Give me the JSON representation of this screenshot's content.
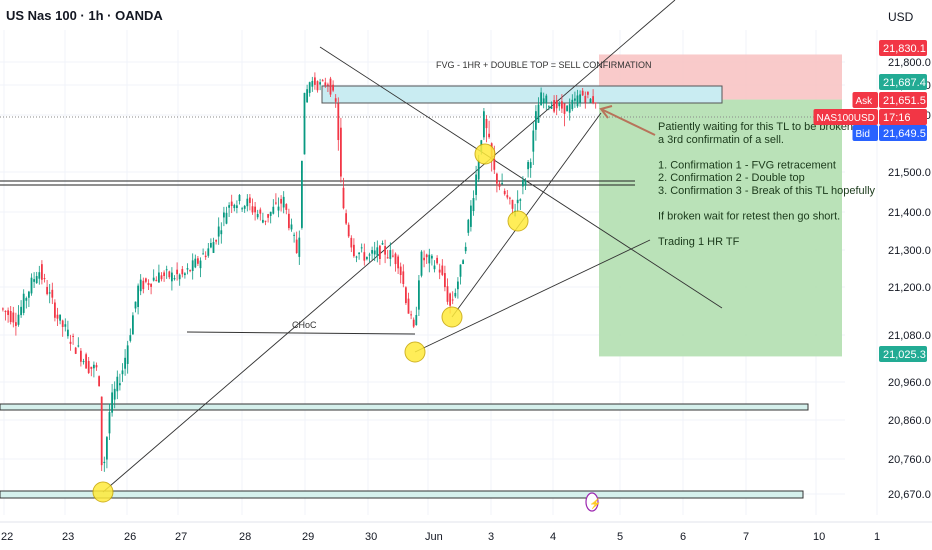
{
  "header": {
    "title": "US Nas 100 · 1h · OANDA",
    "currency": "USD"
  },
  "chart_data": {
    "type": "candlestick",
    "x_ticks": [
      "22",
      "23",
      "26",
      "27",
      "28",
      "29",
      "30",
      "Jun",
      "3",
      "4",
      "5",
      "6",
      "7",
      "10",
      "1"
    ],
    "y_ticks": [
      21800.0,
      21700.0,
      21600.0,
      21500.0,
      21400.0,
      21300.0,
      21200.0,
      21080.0,
      20960.0,
      20860.0,
      20760.0,
      20670.0
    ],
    "y_tick_labels": [
      "21,800.0",
      "21,700.0",
      "21,600.0",
      "21,500.0",
      "21,400.0",
      "21,300.0",
      "21,200.0",
      "21,080.0",
      "20,960.0",
      "20,860.0",
      "20,760.0",
      "20,670.0"
    ],
    "price_tags": [
      {
        "label": "21,830.1",
        "value": 21830.1,
        "color": "#f23645"
      },
      {
        "label": "21,687.4",
        "value": 21687.4,
        "color": "#22ab94"
      },
      {
        "label": "21,651.5",
        "value": 21651.5,
        "color": "#f23645",
        "side_label": "Ask"
      },
      {
        "label": "17:16",
        "value": 21635,
        "color": "#f23645",
        "side_label": "NAS100USD"
      },
      {
        "label": "21,649.5",
        "value": 21649.5,
        "color": "#2962ff",
        "side_label": "Bid"
      },
      {
        "label": "21,025.3",
        "value": 21025.3,
        "color": "#22ab94"
      }
    ],
    "annotations": {
      "headline": "FVG - 1HR + DOUBLE TOP = SELL CONFIRMATION",
      "choc": "CHoC",
      "notes": [
        "Patiently waiting for this TL to be broken for",
        "a 3rd confirmatin of a sell.",
        "",
        "1. Confirmation 1 -  FVG retracement",
        "2. Confirmation 2 - Double top",
        "3. Confirmation 3 - Break of this TL hopefully",
        "",
        "If broken wait for retest then go short.",
        "",
        "Trading 1 HR TF"
      ]
    },
    "colors": {
      "up": "#089981",
      "down": "#f23645",
      "profit_zone": "#b2dfb0",
      "risk_zone": "#f8c4c4",
      "fvg_box": "#c9ecf2"
    }
  }
}
